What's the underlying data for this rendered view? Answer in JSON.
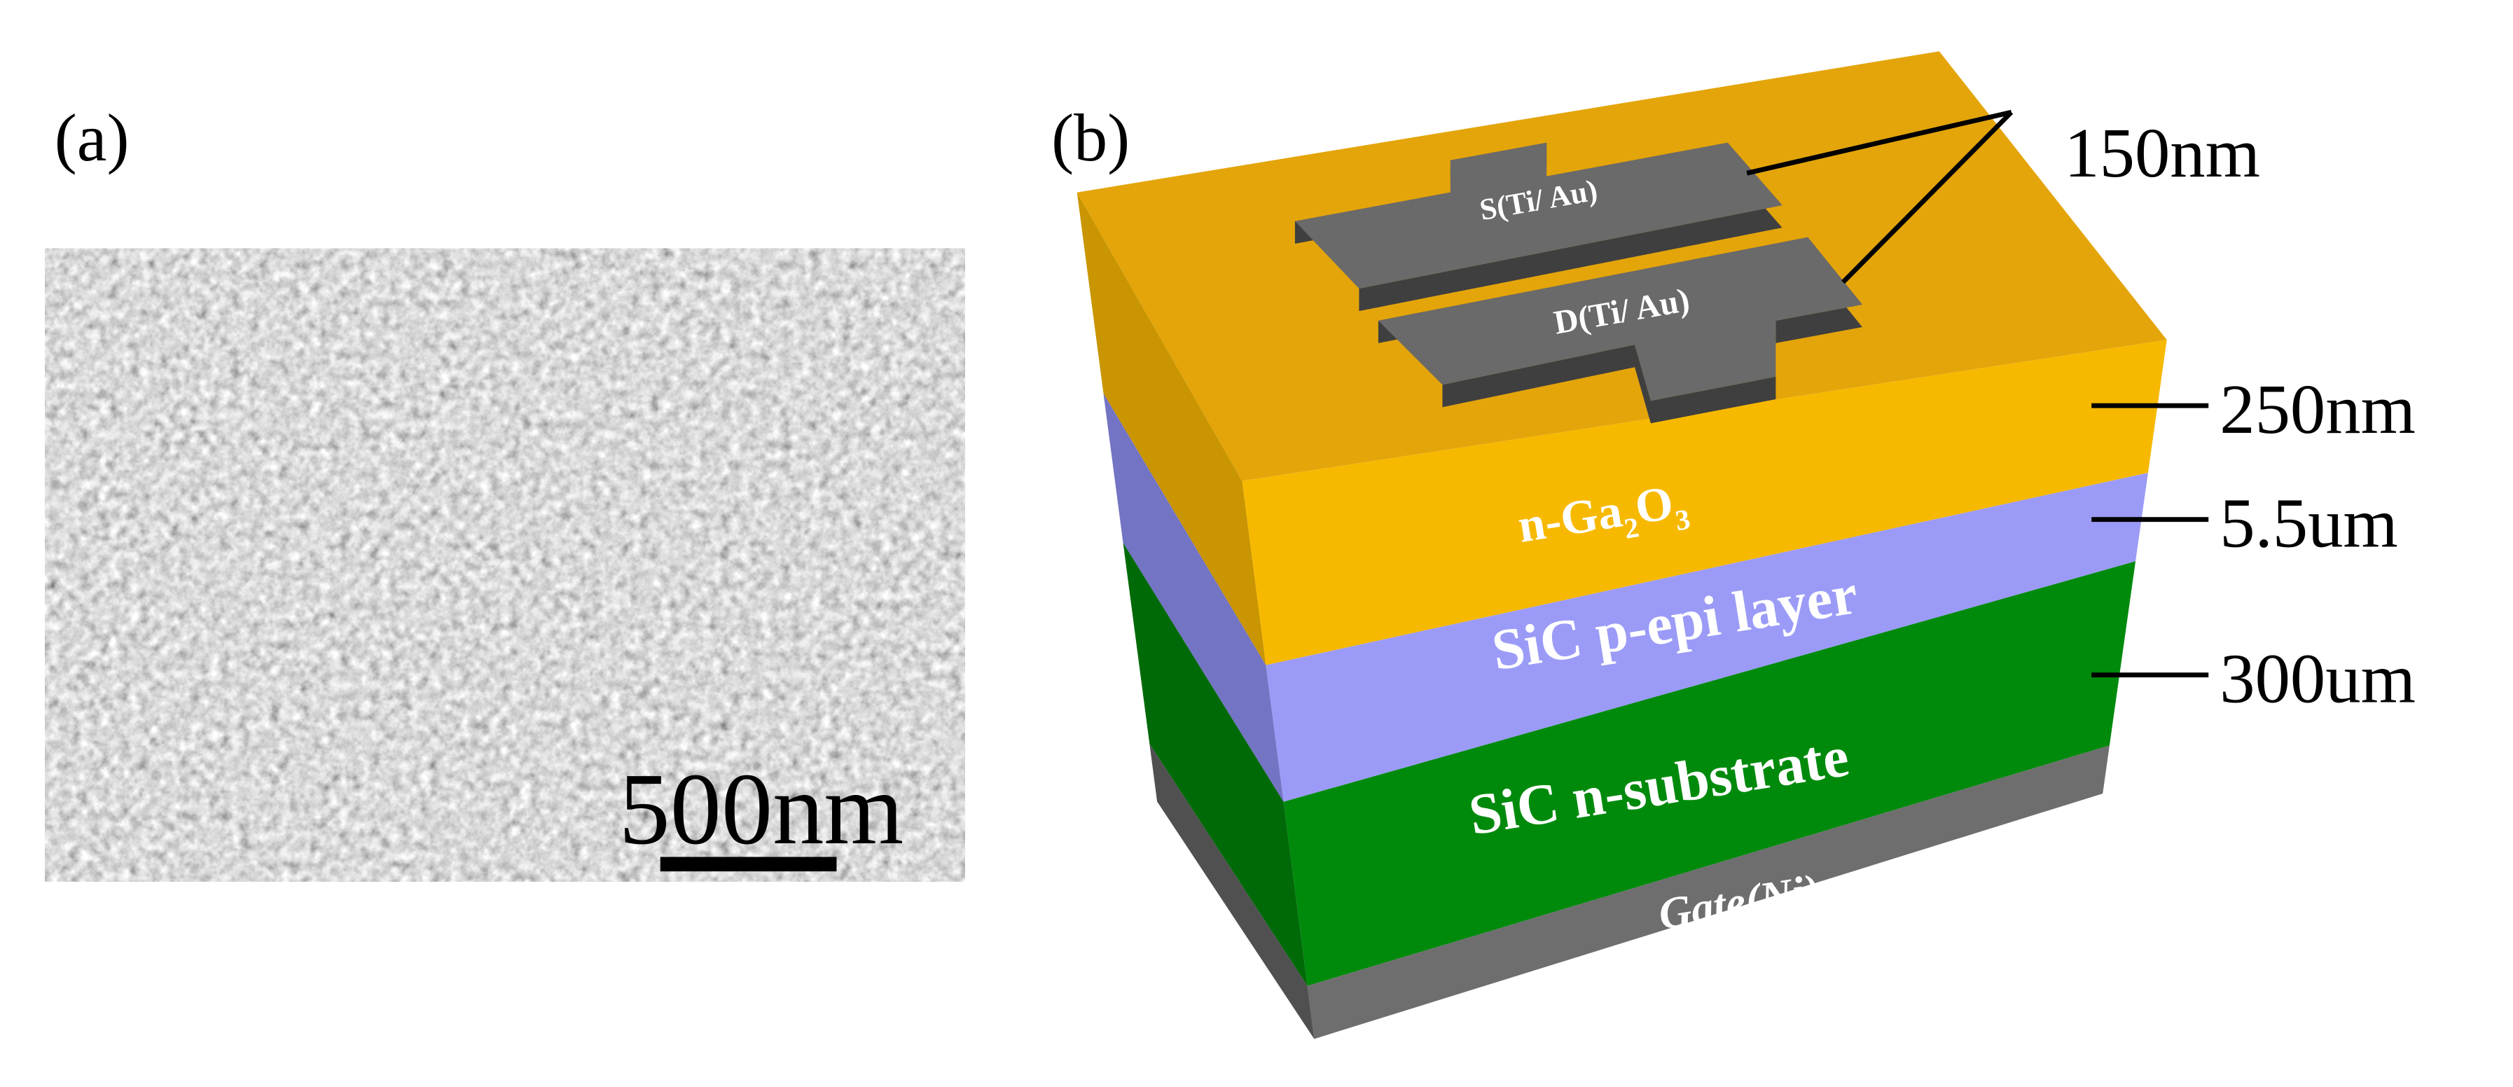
{
  "panel_a": {
    "label": "(a)",
    "scale_bar": "500nm"
  },
  "panel_b": {
    "label": "(b)",
    "electrodes": [
      "S(Ti/ Au)",
      "D(Ti/ Au)"
    ],
    "ga2o3_label": [
      "n-Ga",
      "2",
      "O",
      "3"
    ],
    "layers": [
      "SiC p-epi layer",
      "SiC n-substrate",
      "Gate(Ni)"
    ],
    "thickness_labels": [
      "150nm",
      "250nm",
      "5.5um",
      "300um"
    ]
  }
}
